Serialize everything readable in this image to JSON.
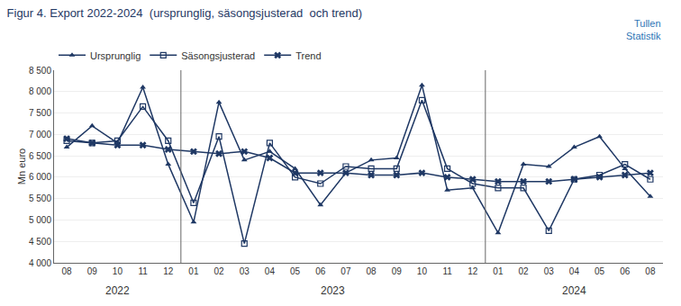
{
  "chart_data": {
    "type": "line",
    "title": "Figur 4. Export 2022-2024  (ursprunglig, säsongsjusterad  och trend)",
    "ylabel": "Mn euro",
    "categories": [
      "08",
      "09",
      "10",
      "11",
      "12",
      "01",
      "02",
      "03",
      "04",
      "05",
      "06",
      "07",
      "08",
      "09",
      "10",
      "11",
      "12",
      "01",
      "02",
      "03",
      "04",
      "05",
      "06",
      "08"
    ],
    "series": [
      {
        "name": "Ursprunglig",
        "color": "#1F3864",
        "marker": "triangle-up",
        "values": [
          6700,
          7200,
          6800,
          8100,
          6300,
          4950,
          7750,
          6400,
          6600,
          6200,
          5350,
          6100,
          6400,
          6450,
          8150,
          5700,
          5750,
          4700,
          6300,
          6250,
          6700,
          6950,
          6200,
          5550
        ]
      },
      {
        "name": "Säsongsjusterad",
        "color": "#1F3864",
        "marker": "square-open",
        "values": [
          6850,
          6800,
          6850,
          7650,
          6850,
          5400,
          6950,
          4450,
          6800,
          6000,
          5850,
          6250,
          6200,
          6200,
          7800,
          6200,
          5850,
          5750,
          5750,
          4750,
          5950,
          6050,
          6300,
          5950
        ]
      },
      {
        "name": "Trend",
        "color": "#1F3864",
        "marker": "x",
        "values": [
          6900,
          6800,
          6750,
          6750,
          6650,
          6600,
          6550,
          6600,
          6450,
          6100,
          6100,
          6100,
          6050,
          6050,
          6100,
          6000,
          5950,
          5900,
          5900,
          5900,
          5950,
          6000,
          6050,
          6100
        ]
      }
    ],
    "ylim": [
      4000,
      8500
    ],
    "yticks": [
      {
        "value": 4000,
        "label": "4 000"
      },
      {
        "value": 4500,
        "label": "4 500"
      },
      {
        "value": 5000,
        "label": "5 000"
      },
      {
        "value": 5500,
        "label": "5 500"
      },
      {
        "value": 6000,
        "label": "6 000"
      },
      {
        "value": 6500,
        "label": "6 500"
      },
      {
        "value": 7000,
        "label": "7 000"
      },
      {
        "value": 7500,
        "label": "7 500"
      },
      {
        "value": 8000,
        "label": "8 000"
      },
      {
        "value": 8500,
        "label": "8 500"
      }
    ],
    "annotations": [
      {
        "text": "2022",
        "x": [
          0,
          4
        ]
      },
      {
        "text": "2023",
        "x": [
          5,
          16
        ]
      },
      {
        "text": "2024",
        "x": [
          17,
          23
        ]
      },
      {
        "text": "Tullen\nStatistik"
      }
    ],
    "grid": "y",
    "legend": "top"
  }
}
